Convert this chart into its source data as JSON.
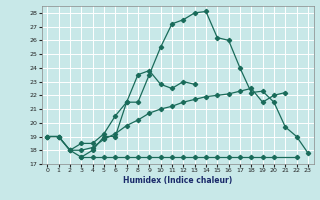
{
  "xlabel": "Humidex (Indice chaleur)",
  "bg_color": "#c8e8e8",
  "line_color": "#1a6b5a",
  "grid_color": "#ffffff",
  "xlim": [
    -0.5,
    23.5
  ],
  "ylim": [
    17,
    28.5
  ],
  "yticks": [
    17,
    18,
    19,
    20,
    21,
    22,
    23,
    24,
    25,
    26,
    27,
    28
  ],
  "xticks": [
    0,
    1,
    2,
    3,
    4,
    5,
    6,
    7,
    8,
    9,
    10,
    11,
    12,
    13,
    14,
    15,
    16,
    17,
    18,
    19,
    20,
    21,
    22,
    23
  ],
  "series": [
    {
      "x": [
        0,
        1,
        2,
        3,
        4,
        5,
        6,
        7,
        8,
        9,
        10,
        11,
        12,
        13,
        14,
        15,
        16,
        17,
        18,
        19,
        20,
        21,
        22,
        23
      ],
      "y": [
        19,
        19,
        18,
        17.5,
        18,
        19,
        19,
        21.5,
        21.5,
        23.5,
        25.5,
        27.2,
        27.5,
        28,
        28.1,
        26.2,
        26,
        24,
        22.2,
        22.3,
        21.5,
        19.7,
        19,
        17.8
      ]
    },
    {
      "x": [
        0,
        1,
        2,
        3,
        4,
        5,
        6,
        7,
        8,
        9,
        10,
        11,
        12,
        13
      ],
      "y": [
        19,
        19,
        18,
        18.5,
        18.5,
        19.2,
        20.5,
        21.5,
        23.5,
        23.8,
        22.8,
        22.5,
        23,
        22.8
      ]
    },
    {
      "x": [
        0,
        1,
        2,
        3,
        4,
        5,
        6,
        7,
        8,
        9,
        10,
        11,
        12,
        13,
        14,
        15,
        16,
        17,
        18,
        19,
        20,
        21
      ],
      "y": [
        19,
        19,
        18,
        18,
        18.2,
        18.8,
        19.2,
        19.8,
        20.2,
        20.7,
        21.0,
        21.2,
        21.5,
        21.7,
        21.9,
        22.0,
        22.1,
        22.3,
        22.5,
        21.5,
        22.0,
        22.2
      ]
    },
    {
      "x": [
        3,
        4,
        5,
        6,
        7,
        8,
        9,
        10,
        11,
        12,
        13,
        14,
        15,
        16,
        17,
        18,
        19,
        20,
        22
      ],
      "y": [
        17.5,
        17.5,
        17.5,
        17.5,
        17.5,
        17.5,
        17.5,
        17.5,
        17.5,
        17.5,
        17.5,
        17.5,
        17.5,
        17.5,
        17.5,
        17.5,
        17.5,
        17.5,
        17.5
      ]
    }
  ]
}
